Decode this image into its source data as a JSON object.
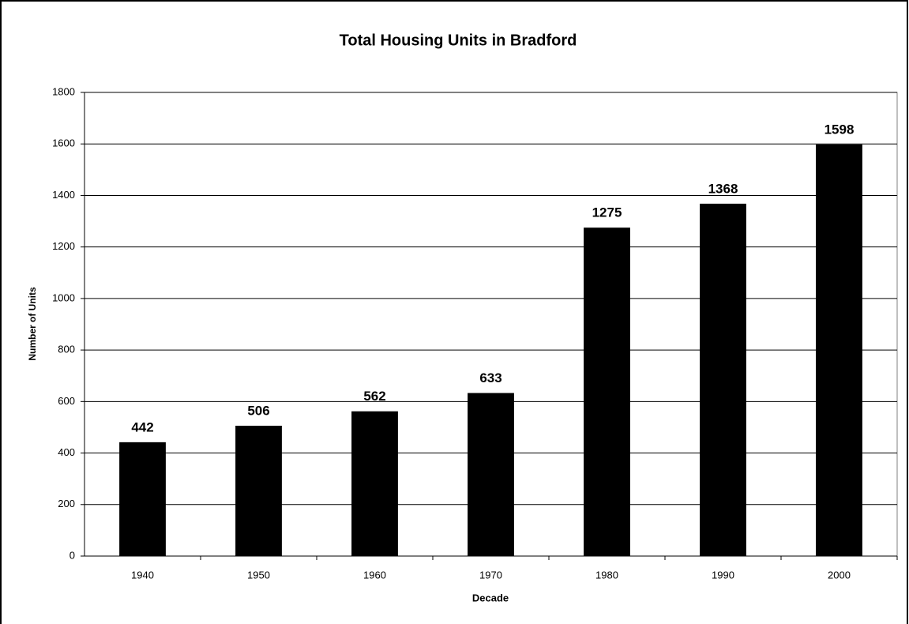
{
  "chart_data": {
    "type": "bar",
    "title": "Total Housing Units in Bradford",
    "x_label": "Decade",
    "y_label": "Number of Units",
    "categories": [
      "1940",
      "1950",
      "1960",
      "1970",
      "1980",
      "1990",
      "2000"
    ],
    "values": [
      442,
      506,
      562,
      633,
      1275,
      1368,
      1598
    ],
    "color": "#000000",
    "ylim": [
      0,
      1800
    ],
    "yticks": [
      0,
      200,
      400,
      600,
      800,
      1000,
      1200,
      1400,
      1600,
      1800
    ],
    "grid": true
  }
}
